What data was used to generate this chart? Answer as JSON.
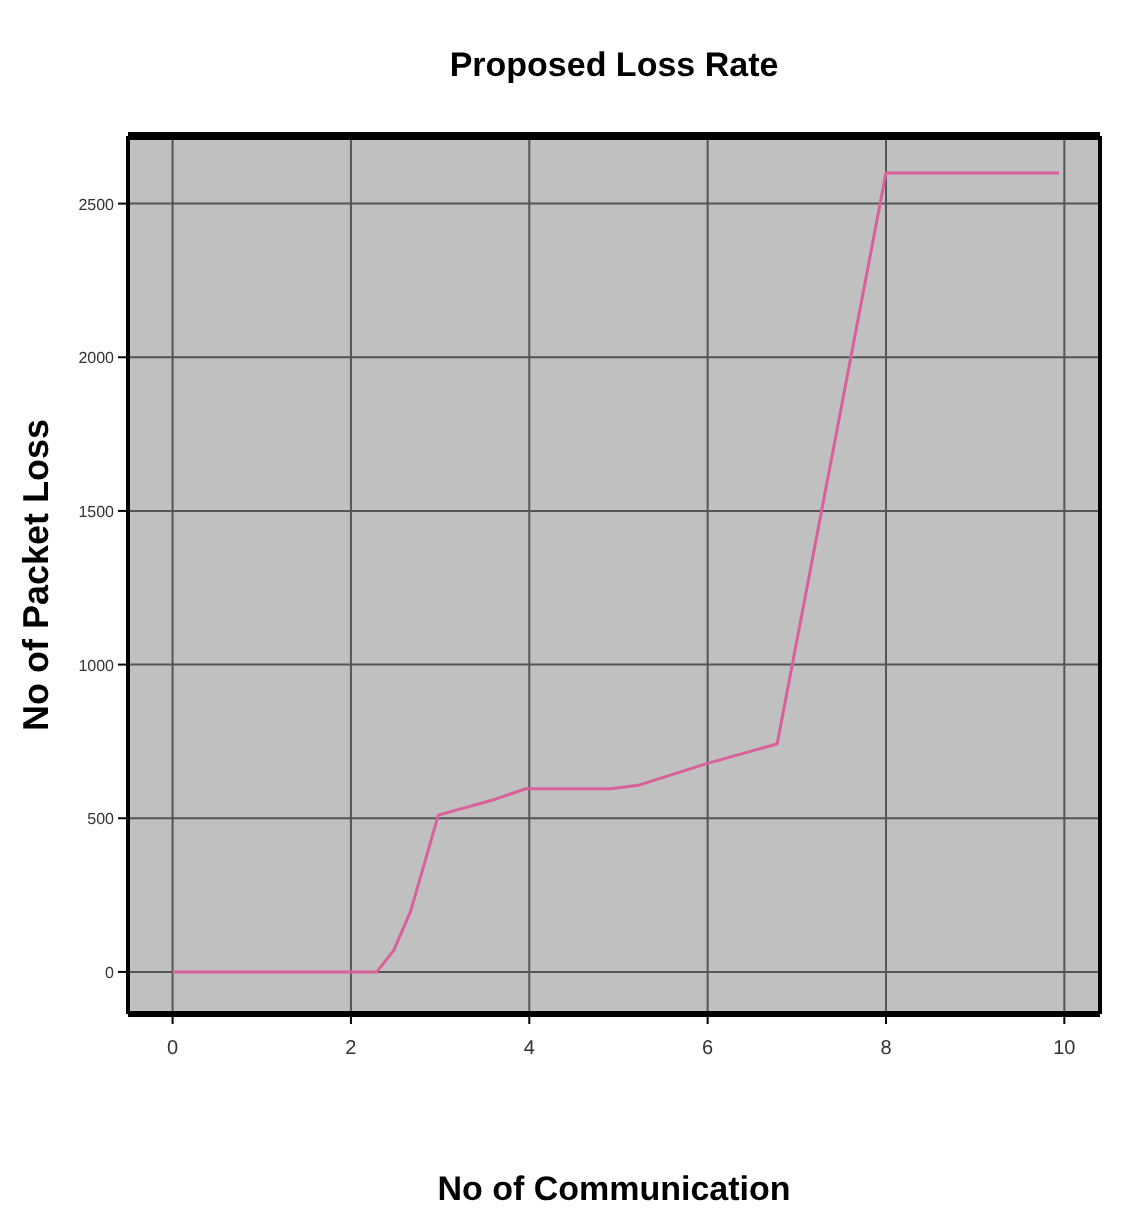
{
  "chart_data": {
    "type": "line",
    "title": "Proposed  Loss Rate",
    "xlabel": "No of Communication",
    "ylabel": "No of Packet Loss",
    "x": [
      0,
      2.29,
      2.48,
      2.67,
      2.98,
      3.62,
      3.96,
      4.91,
      5.22,
      5.98,
      6.78,
      8.0,
      9.94
    ],
    "series": [
      {
        "color": "#d9609a",
        "values": [
          0,
          0,
          70,
          198,
          510,
          562,
          596,
          596,
          607,
          677,
          742,
          2600,
          2600
        ]
      }
    ],
    "xlim": [
      -0.5,
      10.4
    ],
    "xticks": [
      0,
      2,
      4,
      6,
      8,
      10
    ],
    "ylim": [
      -137,
      2720
    ],
    "yticks": [
      0,
      500,
      1000,
      1500,
      2000,
      2500
    ],
    "grid": true
  }
}
